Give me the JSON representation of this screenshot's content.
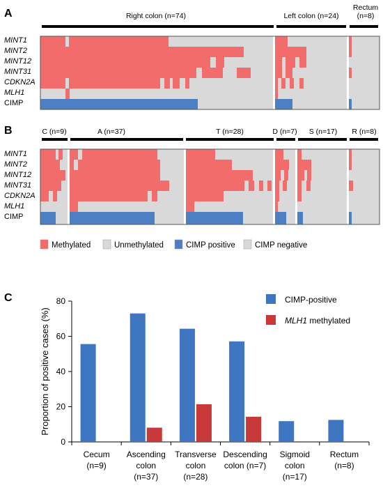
{
  "colors": {
    "methylated": "#f36c6c",
    "unmethylated": "#d9d9d9",
    "cimp_positive": "#4d7fc4",
    "cimp_negative": "#d9d9d9",
    "bar_cimp": "#3f76c2",
    "bar_mlh1": "#c83a3a",
    "group_bar": "#000000"
  },
  "panel_a": {
    "letter": "A",
    "groups": [
      {
        "label": "Right colon (n=74)",
        "n": 74
      },
      {
        "label": "Left colon (n=24)",
        "n": 24
      },
      {
        "label_line1": "Rectum",
        "label_line2": "(n=8)",
        "n": 8
      }
    ],
    "rows": [
      "MINT1",
      "MINT2",
      "MINT12",
      "MINT31",
      "CDKN2A",
      "MLH1",
      "CIMP"
    ]
  },
  "panel_b": {
    "letter": "B",
    "groups": [
      {
        "label": "C (n=9)",
        "n": 9
      },
      {
        "label": "A (n=37)",
        "n": 37
      },
      {
        "label": "T (n=28)",
        "n": 28
      },
      {
        "label": "D (n=7)",
        "n": 7
      },
      {
        "label": "S (n=17)",
        "n": 17
      },
      {
        "label": "R (n=8)",
        "n": 8
      }
    ],
    "rows": [
      "MINT1",
      "MINT2",
      "MINT12",
      "MINT31",
      "CDKN2A",
      "MLH1",
      "CIMP"
    ]
  },
  "legend": {
    "methylated": "Methylated",
    "unmethylated": "Unmethylated",
    "cimp_positive": "CIMP positive",
    "cimp_negative": "CIMP negative"
  },
  "chart_data": {
    "type": "bar",
    "panel_letter": "C",
    "categories": [
      [
        "Cecum",
        "(n=9)"
      ],
      [
        "Ascending",
        "colon",
        "(n=37)"
      ],
      [
        "Transverse",
        "colon",
        "(n=28)"
      ],
      [
        "Descending",
        "colon (n=7)"
      ],
      [
        "Sigmoid",
        "colon",
        "(n=17)"
      ],
      [
        "Rectum",
        "(n=8)"
      ]
    ],
    "series": [
      {
        "name": "CIMP-positive",
        "values": [
          55.6,
          73.0,
          64.3,
          57.1,
          11.8,
          12.5
        ]
      },
      {
        "name": "MLH1 methylated",
        "values": [
          0,
          8.1,
          21.4,
          14.3,
          0,
          0
        ]
      }
    ],
    "ylabel": "Proportion of positive cases (%)",
    "xlabel": "",
    "ylim": [
      0,
      80
    ],
    "yticks": [
      0,
      20,
      40,
      60,
      80
    ],
    "grid": false,
    "legend_position": "top-right"
  }
}
